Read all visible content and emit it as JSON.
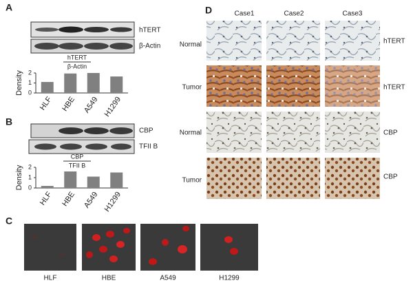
{
  "panels": {
    "a": "A",
    "b": "B",
    "c": "C",
    "d": "D"
  },
  "blots": {
    "a": [
      "hTERT",
      "β-Actin"
    ],
    "b": [
      "CBP",
      "TFII B"
    ]
  },
  "chart_data": [
    {
      "type": "bar",
      "numerator": "hTERT",
      "denominator": "β-Actin",
      "y_label": "Density",
      "categories": [
        "HLF",
        "HBE",
        "A549",
        "H1299"
      ],
      "values": [
        1.1,
        1.95,
        2.0,
        1.65
      ],
      "color": "#808080",
      "ylim": [
        0,
        2
      ],
      "yticks": [
        0,
        1,
        2
      ]
    },
    {
      "type": "bar",
      "numerator": "CBP",
      "denominator": "TFII B",
      "y_label": "Density",
      "categories": [
        "HLF",
        "HBE",
        "A549",
        "H1299"
      ],
      "values": [
        0.2,
        1.6,
        1.1,
        1.5
      ],
      "color": "#808080",
      "ylim": [
        0,
        2
      ],
      "yticks": [
        0,
        1,
        2
      ]
    }
  ],
  "fluorescence": {
    "labels": [
      "HLF",
      "HBE",
      "A549",
      "H1299"
    ]
  },
  "histology": {
    "columns": [
      "Case1",
      "Case2",
      "Case3"
    ],
    "rows": [
      {
        "label": "Normal",
        "marker": "hTERT"
      },
      {
        "label": "Tumor",
        "marker": "hTERT"
      },
      {
        "label": "Normal",
        "marker": "CBP"
      },
      {
        "label": "Tumor",
        "marker": "CBP"
      }
    ]
  }
}
